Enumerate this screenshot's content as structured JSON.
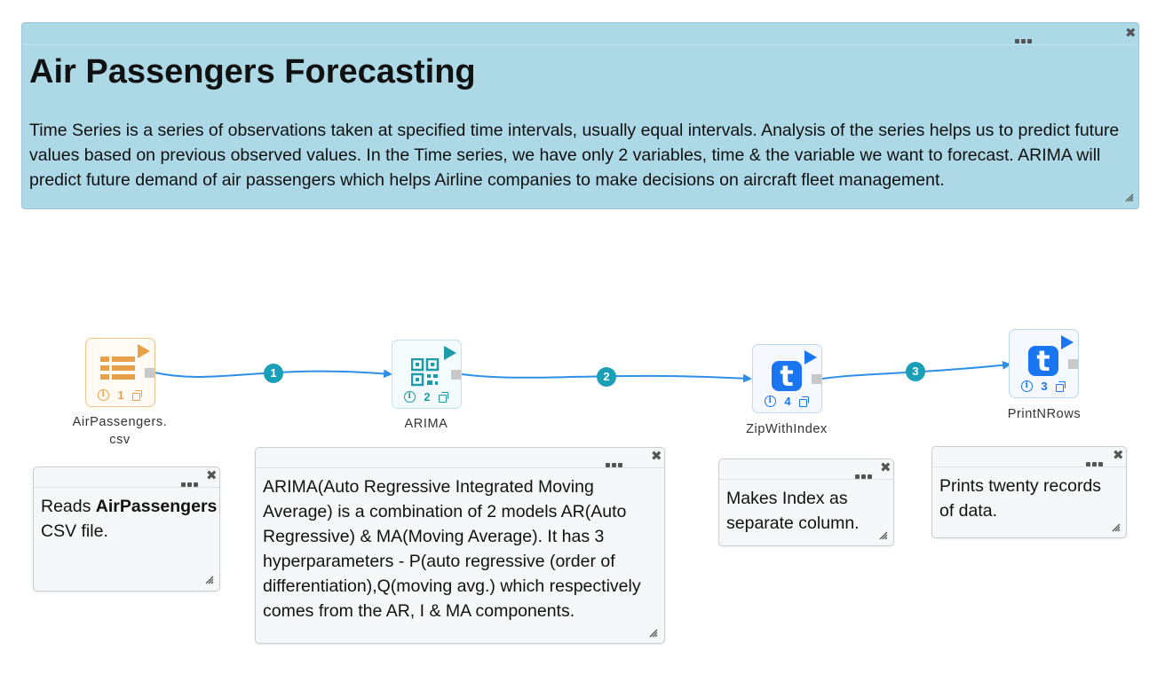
{
  "header_note": {
    "title": "Air Passengers Forecasting",
    "description": "Time Series is a series of observations taken at specified time intervals, usually equal intervals. Analysis of the series helps us to predict future values based on previous observed values. In the Time series, we have only 2 variables, time & the variable we want to forecast. ARIMA will predict future demand of air passengers which helps Airline companies to make decisions on aircraft fleet management."
  },
  "nodes": [
    {
      "id": "1",
      "label_line1": "AirPassengers.",
      "label_line2": "csv",
      "icon": "table-icon",
      "color": "#e8a04a"
    },
    {
      "id": "2",
      "label": "ARIMA",
      "icon": "qr-code-icon",
      "color": "#1e9aa9"
    },
    {
      "id": "4",
      "label": "ZipWithIndex",
      "icon": "t-app-icon",
      "color": "#1976f0"
    },
    {
      "id": "3",
      "label": "PrintNRows",
      "icon": "t-app-icon",
      "color": "#1976f0"
    }
  ],
  "edges": [
    "1",
    "2",
    "3"
  ],
  "notes": {
    "airpassengers_pre": "Reads ",
    "airpassengers_bold": "AirPassengers",
    "airpassengers_post": "CSV file.",
    "arima": "ARIMA(Auto Regressive Integrated Moving Average) is a combination of 2 models AR(Auto Regressive) & MA(Moving Average). It has 3 hyperparameters - P(auto regressive (order of differentiation),Q(moving avg.) which respectively comes from the AR, I & MA components.",
    "zipwithindex": "Makes Index as separate column.",
    "printnrows": "Prints twenty records of data."
  },
  "colors": {
    "header_bg": "#add8e6",
    "edge": "#2e8fe8",
    "badge": "#1a9fb8"
  }
}
